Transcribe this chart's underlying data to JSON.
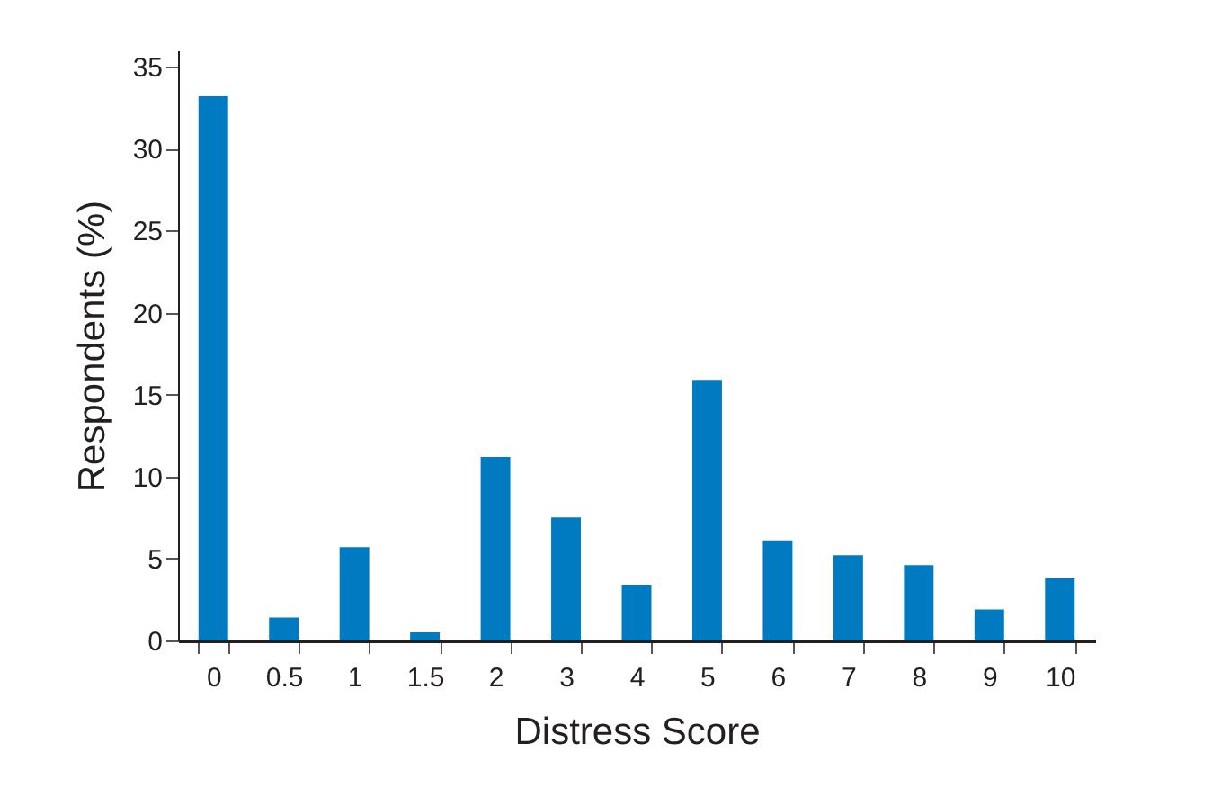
{
  "chart_data": {
    "type": "bar",
    "xlabel": "Distress Score",
    "ylabel": "Respondents (%)",
    "categories": [
      "0",
      "0.5",
      "1",
      "1.5",
      "2",
      "3",
      "4",
      "5",
      "6",
      "7",
      "8",
      "9",
      "10"
    ],
    "values": [
      33.2,
      1.4,
      5.7,
      0.5,
      11.2,
      7.5,
      3.4,
      15.9,
      6.1,
      5.2,
      4.6,
      1.9,
      3.8
    ],
    "color": "#007bc2",
    "ylim": [
      0,
      36
    ],
    "yticks": [
      0,
      5,
      10,
      15,
      20,
      25,
      30,
      35
    ],
    "grid": false
  }
}
